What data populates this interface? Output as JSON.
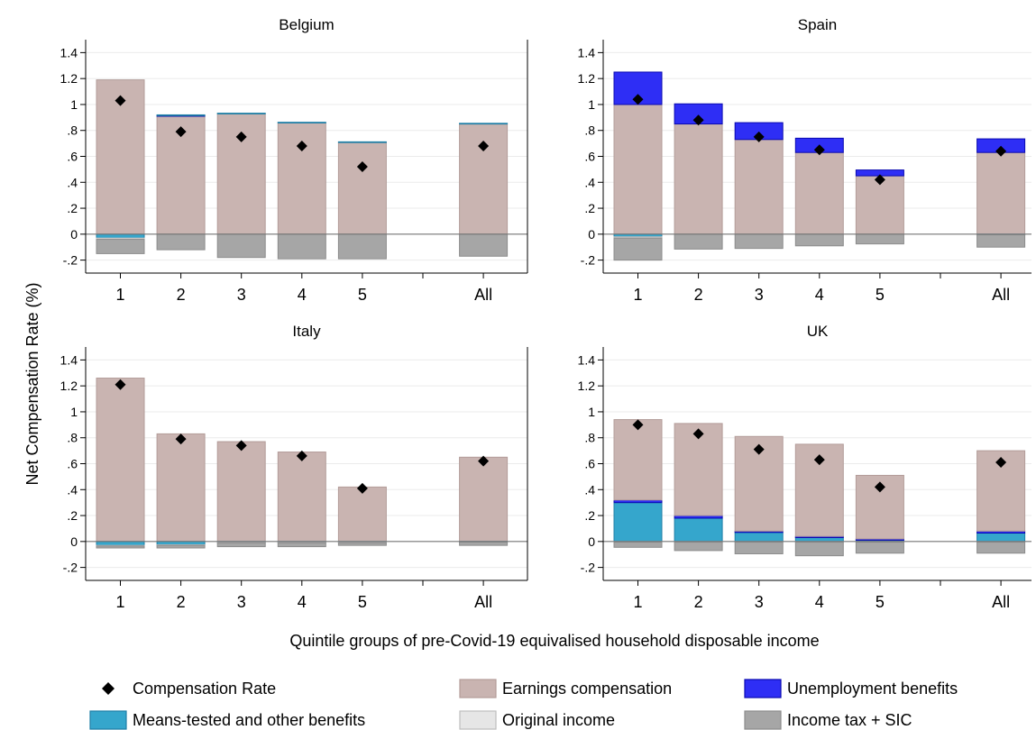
{
  "figure": {
    "ylabel": "Net Compensation Rate (%)",
    "xlabel": "Quintile groups of pre-Covid-19 equivalised household disposable income"
  },
  "colors": {
    "earnings": "#c9b4b1",
    "earnings_edge": "#b39c99",
    "unemployment": "#2e2ef5",
    "unemployment_edge": "#0a0ab0",
    "means_tested": "#35a6cc",
    "means_tested_edge": "#1f7fa6",
    "original_income": "#e6e6e6",
    "income_tax": "#a6a6a6",
    "income_tax_edge": "#8c8c8c",
    "marker": "#000000"
  },
  "legend": {
    "items": [
      {
        "key": "rate",
        "label": "Compensation Rate",
        "symbol": "diamond"
      },
      {
        "key": "earnings",
        "label": "Earnings compensation",
        "symbol": "box"
      },
      {
        "key": "unemployment",
        "label": "Unemployment benefits",
        "symbol": "box"
      },
      {
        "key": "means_tested",
        "label": "Means-tested and other benefits",
        "symbol": "box"
      },
      {
        "key": "original_income",
        "label": "Original income",
        "symbol": "box"
      },
      {
        "key": "income_tax",
        "label": "Income tax + SIC",
        "symbol": "box"
      }
    ]
  },
  "chart_data": [
    {
      "type": "bar",
      "stacked": true,
      "title": "Belgium",
      "categories": [
        "1",
        "2",
        "3",
        "4",
        "5",
        "All"
      ],
      "ylim": [
        -0.3,
        1.5
      ],
      "yticks": [
        -0.2,
        0,
        0.2,
        0.4,
        0.6,
        0.8,
        1,
        1.2,
        1.4
      ],
      "ytick_labels": [
        "-.2",
        "0",
        ".2",
        ".4",
        ".6",
        ".8",
        "1",
        "1.2",
        "1.4"
      ],
      "grid": true,
      "series": [
        {
          "name": "Earnings compensation",
          "key": "earnings",
          "values": [
            1.19,
            0.91,
            0.93,
            0.86,
            0.71,
            0.85
          ]
        },
        {
          "name": "Unemployment benefits",
          "key": "unemployment",
          "values": [
            0,
            0.005,
            0,
            0,
            0,
            0
          ]
        },
        {
          "name": "Means-tested and other benefits",
          "key": "means_tested",
          "values": [
            -0.03,
            0.005,
            0.003,
            0.003,
            0.002,
            0.005
          ]
        },
        {
          "name": "Original income",
          "key": "original_income",
          "values": [
            -0.01,
            0,
            0,
            0,
            0,
            0
          ]
        },
        {
          "name": "Income tax + SIC",
          "key": "income_tax",
          "values": [
            -0.11,
            -0.12,
            -0.18,
            -0.19,
            -0.19,
            -0.17
          ]
        }
      ],
      "compensation_rate": [
        1.03,
        0.79,
        0.75,
        0.68,
        0.52,
        0.68
      ]
    },
    {
      "type": "bar",
      "stacked": true,
      "title": "Spain",
      "categories": [
        "1",
        "2",
        "3",
        "4",
        "5",
        "All"
      ],
      "ylim": [
        -0.3,
        1.5
      ],
      "yticks": [
        -0.2,
        0,
        0.2,
        0.4,
        0.6,
        0.8,
        1,
        1.2,
        1.4
      ],
      "ytick_labels": [
        "-.2",
        "0",
        ".2",
        ".4",
        ".6",
        ".8",
        "1",
        "1.2",
        "1.4"
      ],
      "grid": true,
      "series": [
        {
          "name": "Earnings compensation",
          "key": "earnings",
          "values": [
            1.0,
            0.85,
            0.73,
            0.63,
            0.45,
            0.63
          ]
        },
        {
          "name": "Unemployment benefits",
          "key": "unemployment",
          "values": [
            0.25,
            0.155,
            0.13,
            0.11,
            0.045,
            0.105
          ]
        },
        {
          "name": "Means-tested and other benefits",
          "key": "means_tested",
          "values": [
            -0.02,
            0,
            0,
            0,
            0,
            -0.005
          ]
        },
        {
          "name": "Original income",
          "key": "original_income",
          "values": [
            -0.01,
            0,
            0,
            0,
            0,
            0
          ]
        },
        {
          "name": "Income tax + SIC",
          "key": "income_tax",
          "values": [
            -0.17,
            -0.115,
            -0.11,
            -0.09,
            -0.075,
            -0.095
          ]
        }
      ],
      "compensation_rate": [
        1.04,
        0.88,
        0.75,
        0.65,
        0.42,
        0.64
      ]
    },
    {
      "type": "bar",
      "stacked": true,
      "title": "Italy",
      "categories": [
        "1",
        "2",
        "3",
        "4",
        "5",
        "All"
      ],
      "ylim": [
        -0.3,
        1.5
      ],
      "yticks": [
        -0.2,
        0,
        0.2,
        0.4,
        0.6,
        0.8,
        1,
        1.2,
        1.4
      ],
      "ytick_labels": [
        "-.2",
        "0",
        ".2",
        ".4",
        ".6",
        ".8",
        "1",
        "1.2",
        "1.4"
      ],
      "grid": true,
      "series": [
        {
          "name": "Earnings compensation",
          "key": "earnings",
          "values": [
            1.26,
            0.83,
            0.77,
            0.69,
            0.42,
            0.65
          ]
        },
        {
          "name": "Unemployment benefits",
          "key": "unemployment",
          "values": [
            0,
            0,
            0,
            0,
            0,
            0
          ]
        },
        {
          "name": "Means-tested and other benefits",
          "key": "means_tested",
          "values": [
            -0.03,
            -0.025,
            -0.005,
            -0.005,
            -0.005,
            -0.005
          ]
        },
        {
          "name": "Original income",
          "key": "original_income",
          "values": [
            -0.005,
            -0.005,
            -0.005,
            -0.005,
            -0.005,
            0
          ]
        },
        {
          "name": "Income tax + SIC",
          "key": "income_tax",
          "values": [
            -0.015,
            -0.02,
            -0.03,
            -0.03,
            -0.02,
            -0.025
          ]
        }
      ],
      "compensation_rate": [
        1.21,
        0.79,
        0.74,
        0.66,
        0.41,
        0.62
      ]
    },
    {
      "type": "bar",
      "stacked": true,
      "title": "UK",
      "categories": [
        "1",
        "2",
        "3",
        "4",
        "5",
        "All"
      ],
      "ylim": [
        -0.3,
        1.5
      ],
      "yticks": [
        -0.2,
        0,
        0.2,
        0.4,
        0.6,
        0.8,
        1,
        1.2,
        1.4
      ],
      "ytick_labels": [
        "-.2",
        "0",
        ".2",
        ".4",
        ".6",
        ".8",
        "1",
        "1.2",
        "1.4"
      ],
      "grid": true,
      "series": [
        {
          "name": "Means-tested and other benefits",
          "key": "means_tested",
          "values": [
            0.3,
            0.18,
            0.07,
            0.03,
            0.01,
            0.065
          ]
        },
        {
          "name": "Unemployment benefits",
          "key": "unemployment",
          "values": [
            0.02,
            0.02,
            0.01,
            0.01,
            0.01,
            0.015
          ]
        },
        {
          "name": "Earnings compensation",
          "key": "earnings",
          "values": [
            0.62,
            0.71,
            0.73,
            0.71,
            0.49,
            0.62
          ]
        },
        {
          "name": "Original income",
          "key": "original_income",
          "values": [
            -0.005,
            -0.005,
            -0.005,
            -0.005,
            -0.005,
            -0.005
          ]
        },
        {
          "name": "Income tax + SIC",
          "key": "income_tax",
          "values": [
            -0.04,
            -0.065,
            -0.09,
            -0.105,
            -0.085,
            -0.085
          ]
        }
      ],
      "compensation_rate": [
        0.9,
        0.83,
        0.71,
        0.63,
        0.42,
        0.61
      ]
    }
  ]
}
